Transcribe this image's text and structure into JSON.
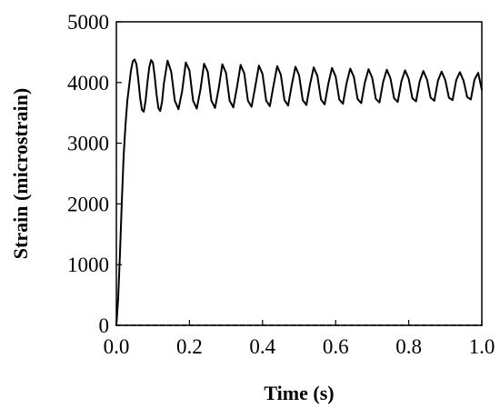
{
  "chart_data": {
    "type": "line",
    "xlabel": "Time (s)",
    "ylabel": "Strain  (microstrain)",
    "xlim": [
      0.0,
      1.0
    ],
    "ylim": [
      0,
      5000
    ],
    "x_ticks": [
      "0.0",
      "0.2",
      "0.4",
      "0.6",
      "0.8",
      "1.0"
    ],
    "y_ticks": [
      "0",
      "1000",
      "2000",
      "3000",
      "4000",
      "5000"
    ],
    "grid": false,
    "legend": "none",
    "series": [
      {
        "style": "solid",
        "color": "#000000",
        "x": [
          0.0,
          0.005,
          0.01,
          0.015,
          0.02,
          0.025,
          0.03,
          0.035,
          0.04,
          0.045,
          0.05,
          0.055,
          0.06,
          0.065,
          0.07,
          0.075,
          0.08,
          0.085,
          0.09,
          0.095,
          0.1,
          0.105,
          0.11,
          0.115,
          0.12,
          0.125,
          0.13,
          0.14,
          0.15,
          0.16,
          0.17,
          0.18,
          0.19,
          0.2,
          0.21,
          0.22,
          0.23,
          0.24,
          0.25,
          0.26,
          0.27,
          0.28,
          0.29,
          0.3,
          0.31,
          0.32,
          0.33,
          0.34,
          0.35,
          0.36,
          0.37,
          0.38,
          0.39,
          0.4,
          0.41,
          0.42,
          0.43,
          0.44,
          0.45,
          0.46,
          0.47,
          0.48,
          0.49,
          0.5,
          0.51,
          0.52,
          0.53,
          0.54,
          0.55,
          0.56,
          0.57,
          0.58,
          0.59,
          0.6,
          0.61,
          0.62,
          0.63,
          0.64,
          0.65,
          0.66,
          0.67,
          0.68,
          0.69,
          0.7,
          0.71,
          0.72,
          0.73,
          0.74,
          0.75,
          0.76,
          0.77,
          0.78,
          0.79,
          0.8,
          0.81,
          0.82,
          0.83,
          0.84,
          0.85,
          0.86,
          0.87,
          0.88,
          0.89,
          0.9,
          0.91,
          0.92,
          0.93,
          0.94,
          0.95,
          0.96,
          0.97,
          0.98,
          0.99,
          1.0
        ],
        "y": [
          0,
          450,
          1200,
          2050,
          2800,
          3300,
          3700,
          3950,
          4200,
          4350,
          4380,
          4300,
          4050,
          3750,
          3550,
          3520,
          3700,
          4000,
          4250,
          4370,
          4330,
          4100,
          3800,
          3580,
          3530,
          3680,
          3980,
          4360,
          4180,
          3700,
          3560,
          3860,
          4330,
          4200,
          3700,
          3570,
          3880,
          4310,
          4180,
          3700,
          3580,
          3900,
          4300,
          4160,
          3700,
          3590,
          3920,
          4290,
          4150,
          3700,
          3600,
          3930,
          4280,
          4140,
          3700,
          3610,
          3950,
          4270,
          4130,
          3710,
          3620,
          3960,
          4260,
          4120,
          3710,
          3630,
          3970,
          4250,
          4110,
          3720,
          3640,
          3980,
          4240,
          4100,
          3720,
          3650,
          3990,
          4230,
          4090,
          3730,
          3660,
          4000,
          4220,
          4080,
          3730,
          3670,
          4010,
          4210,
          4070,
          3740,
          3680,
          4020,
          4200,
          4060,
          3740,
          3690,
          4020,
          4190,
          4050,
          3750,
          3700,
          4030,
          4180,
          4040,
          3750,
          3710,
          4040,
          4170,
          4030,
          3760,
          3720,
          4050,
          4160,
          3880
        ]
      },
      {
        "style": "dashed",
        "color": "#000000",
        "x": [
          0.0,
          1.0
        ],
        "y": [
          0,
          0
        ]
      }
    ]
  }
}
